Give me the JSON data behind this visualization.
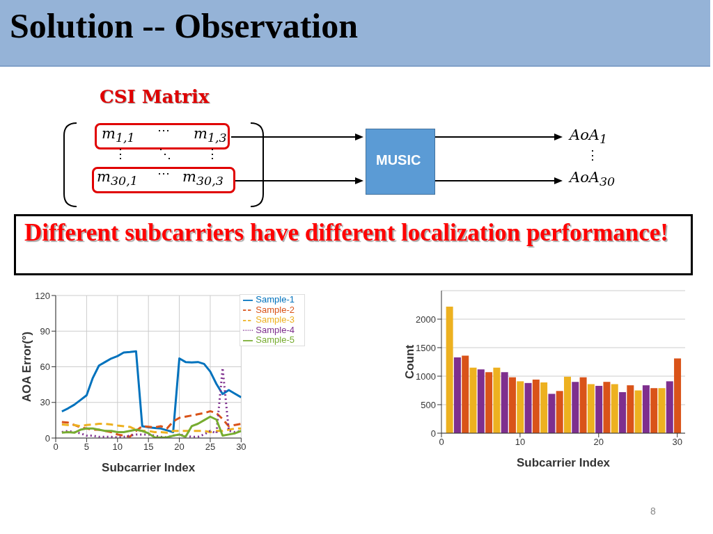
{
  "chart_data": [
    {
      "type": "other",
      "title": "Solution -- Observation",
      "annotations": [
        "CSI Matrix",
        "m$_{1,1}$",
        "⋯",
        "m$_{1,3}$",
        "⋮",
        "⋱",
        "⋮",
        "m$_{30,1}$",
        "⋯",
        "m$_{30,3}$",
        "MUSIC",
        "AoA$_{1}$",
        "⋮",
        "AoA$_{30}$",
        "Different subcarriers have different localization performance!",
        "8"
      ]
    },
    {
      "type": "line",
      "xlabel": "Subcarrier Index",
      "ylabel": "AOA Error(°)",
      "x": [
        1,
        2,
        3,
        4,
        5,
        6,
        7,
        8,
        9,
        10,
        11,
        12,
        13,
        14,
        15,
        16,
        17,
        18,
        19,
        20,
        21,
        22,
        23,
        24,
        25,
        26,
        27,
        28,
        29,
        30
      ],
      "xlim": [
        0,
        30
      ],
      "xticks": [
        0,
        5,
        10,
        15,
        20,
        25,
        30
      ],
      "ylim": [
        0,
        120
      ],
      "yticks": [
        0,
        30,
        60,
        90,
        120
      ],
      "grid": true,
      "legend": "top right",
      "series": [
        {
          "name": "Sample-1",
          "color": "#0072bd",
          "line_style": "solid",
          "values": [
            22.4,
            25,
            28,
            32,
            36,
            50.6,
            61,
            64,
            67,
            69,
            72,
            72.4,
            73,
            10,
            9,
            8.5,
            8,
            6.5,
            5,
            67,
            64,
            63.7,
            64,
            62.4,
            56,
            45.5,
            37,
            40.4,
            37.3,
            34.3
          ]
        },
        {
          "name": "Sample-2",
          "color": "#d95319",
          "line_style": "dashed",
          "values": [
            13.5,
            13,
            11,
            9,
            8,
            7,
            7,
            6,
            5,
            3,
            2,
            1,
            6,
            10,
            9.5,
            9,
            10,
            8,
            14,
            17,
            18,
            19,
            20,
            21,
            22.6,
            21,
            16,
            10,
            11,
            12
          ]
        },
        {
          "name": "Sample-3",
          "color": "#edb120",
          "line_style": "dashed",
          "values": [
            11.4,
            11,
            11,
            10,
            11,
            11.4,
            12,
            12,
            11.4,
            10.6,
            10,
            9.4,
            7,
            6,
            6,
            5,
            5,
            4.5,
            6,
            6,
            6,
            6,
            6,
            6,
            5,
            6,
            6,
            7,
            8,
            8
          ]
        },
        {
          "name": "Sample-4",
          "color": "#7e2f8e",
          "line_style": "dotted",
          "values": [
            5,
            6,
            5,
            4,
            2,
            2,
            1,
            1,
            1,
            0.6,
            1,
            2,
            3,
            3,
            3,
            2,
            1,
            0.6,
            2,
            3,
            2,
            1,
            1,
            3,
            6,
            4,
            59,
            6,
            5,
            6
          ]
        },
        {
          "name": "Sample-5",
          "color": "#77ac30",
          "line_style": "solid",
          "values": [
            4.5,
            5,
            4.5,
            7,
            8,
            8,
            7,
            6,
            6,
            5,
            5,
            6,
            7,
            6,
            4,
            0.6,
            0.4,
            0.6,
            2,
            3,
            1,
            10,
            12,
            15,
            18,
            15.5,
            2,
            3,
            4,
            6
          ]
        }
      ]
    },
    {
      "type": "bar",
      "xlabel": "Subcarrier Index",
      "ylabel": "Count",
      "x": [
        1,
        2,
        3,
        4,
        5,
        6,
        7,
        8,
        9,
        10,
        11,
        12,
        13,
        14,
        15,
        16,
        17,
        18,
        19,
        20,
        21,
        22,
        23,
        24,
        25,
        26,
        27,
        28,
        29,
        30
      ],
      "xlim": [
        0,
        31
      ],
      "xticks": [
        0,
        10,
        20,
        30
      ],
      "ylim": [
        0,
        2500
      ],
      "yticks": [
        0,
        500,
        1000,
        1500,
        2000
      ],
      "grid": "y",
      "values": [
        2220,
        1330,
        1360,
        1150,
        1120,
        1070,
        1150,
        1070,
        980,
        910,
        880,
        940,
        890,
        690,
        740,
        990,
        900,
        980,
        860,
        830,
        900,
        860,
        720,
        840,
        750,
        840,
        790,
        790,
        910,
        1310
      ],
      "colors": [
        "#edb120",
        "#7e2f8e",
        "#d95319",
        "#edb120",
        "#7e2f8e",
        "#d95319",
        "#edb120",
        "#7e2f8e",
        "#d95319",
        "#edb120",
        "#7e2f8e",
        "#d95319",
        "#edb120",
        "#7e2f8e",
        "#d95319",
        "#edb120",
        "#7e2f8e",
        "#d95319",
        "#edb120",
        "#7e2f8e",
        "#d95319",
        "#edb120",
        "#7e2f8e",
        "#d95319",
        "#edb120",
        "#7e2f8e",
        "#d95319",
        "#edb120",
        "#7e2f8e",
        "#d95319"
      ]
    }
  ]
}
